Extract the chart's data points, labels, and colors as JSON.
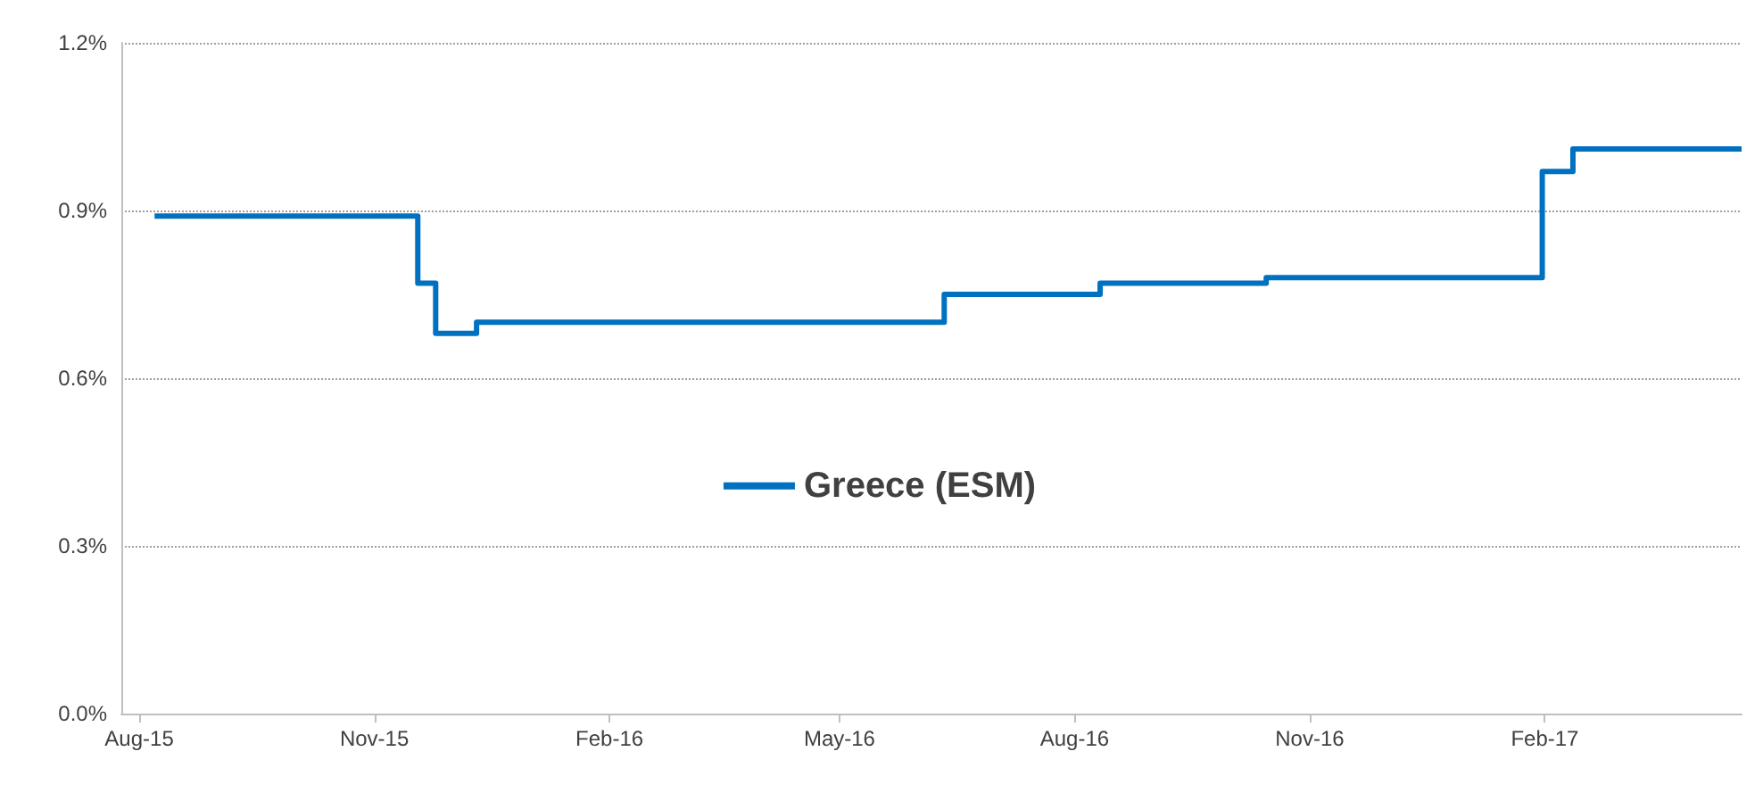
{
  "chart_data": {
    "type": "step",
    "legend": "center",
    "grid": "y",
    "line_style": "solid",
    "marker": "none",
    "x": [
      "2015-08-07",
      "2015-11-18",
      "2015-11-25",
      "2015-12-11",
      "2016-06-11",
      "2016-08-11",
      "2016-10-15",
      "2017-01-31",
      "2017-02-12",
      "2017-04-19"
    ],
    "series": [
      {
        "name": "Greece (ESM)",
        "color": "#0070c0",
        "values": [
          0.89,
          0.77,
          0.68,
          0.7,
          0.75,
          0.77,
          0.78,
          0.97,
          1.01,
          1.01
        ]
      }
    ],
    "xlim": [
      "2015-07-25",
      "2017-04-19"
    ],
    "xticks": [
      {
        "value": "2015-08-01",
        "label": "Aug-15"
      },
      {
        "value": "2015-11-01",
        "label": "Nov-15"
      },
      {
        "value": "2016-02-01",
        "label": "Feb-16"
      },
      {
        "value": "2016-05-01",
        "label": "May-16"
      },
      {
        "value": "2016-08-01",
        "label": "Aug-16"
      },
      {
        "value": "2016-11-01",
        "label": "Nov-16"
      },
      {
        "value": "2017-02-01",
        "label": "Feb-17"
      }
    ],
    "ylim": [
      0,
      1.2
    ],
    "yticks": [
      {
        "value": 0,
        "label": "0.0%"
      },
      {
        "value": 0.3,
        "label": "0.3%"
      },
      {
        "value": 0.6,
        "label": "0.6%"
      },
      {
        "value": 0.9,
        "label": "0.9%"
      },
      {
        "value": 1.2,
        "label": "1.2%"
      }
    ]
  }
}
